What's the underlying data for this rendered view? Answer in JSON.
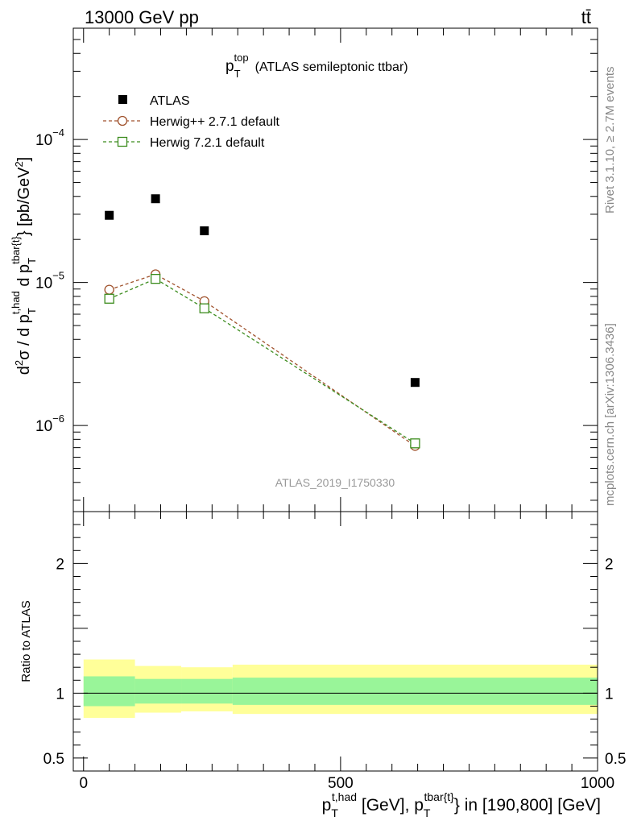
{
  "header": {
    "left": "13000 GeV pp",
    "right": "tt̄"
  },
  "side": {
    "rivet": "Rivet 3.1.10, ≥ 2.7M events",
    "mcplots": "mcplots.cern.ch [arXiv:1306.3436]"
  },
  "chart_data": [
    {
      "type": "scatter",
      "title_main": "p",
      "title_sub": "T",
      "title_sup": "top",
      "title_rest": "(ATLAS semileptonic ttbar)",
      "ylabel": "d²σ / d p_T^{t,had} d p_T^{tbar{t}} [pb/GeV²]",
      "y_scale": "log",
      "ylim": [
        2.5e-07,
        0.0006
      ],
      "xlim": [
        -20,
        1000
      ],
      "y_ticks": [
        1e-06,
        1e-05,
        0.0001
      ],
      "y_tick_labels": [
        {
          "base": "10",
          "exp": "−6"
        },
        {
          "base": "10",
          "exp": "−5"
        },
        {
          "base": "10",
          "exp": "−4"
        }
      ],
      "watermark": "ATLAS_2019_I1750330",
      "legend_position": "top-left",
      "series": [
        {
          "name": "ATLAS",
          "marker": "filled-square",
          "color": "#000000",
          "x": [
            50,
            140,
            235,
            645
          ],
          "y": [
            2.95e-05,
            3.85e-05,
            2.3e-05,
            2e-06
          ]
        },
        {
          "name": "Herwig++ 2.7.1 default",
          "marker": "open-circle",
          "color": "#a0522d",
          "x": [
            50,
            140,
            235,
            645
          ],
          "y": [
            8.9e-06,
            1.14e-05,
            7.4e-06,
            7.2e-07
          ]
        },
        {
          "name": "Herwig 7.2.1 default",
          "marker": "open-square",
          "color": "#3c8c1e",
          "x": [
            50,
            140,
            235,
            645
          ],
          "y": [
            7.7e-06,
            1.06e-05,
            6.6e-06,
            7.5e-07
          ]
        }
      ]
    },
    {
      "type": "area",
      "ylabel": "Ratio to ATLAS",
      "xlabel": "p_T^{t,had} [GeV], p_T^{tbar{t}} in [190,800] [GeV]",
      "xlim": [
        -20,
        1000
      ],
      "ylim": [
        0.4,
        2.4
      ],
      "x_ticks": [
        0,
        500,
        1000
      ],
      "x_tick_labels": [
        "0",
        "500",
        "1000"
      ],
      "y_ticks": [
        0.5,
        1,
        2
      ],
      "y_tick_labels": [
        "0.5",
        "1",
        "2"
      ],
      "bands": [
        {
          "name": "total uncertainty",
          "color": "#ffff99",
          "bins": [
            {
              "x0": 0,
              "x1": 100,
              "lo": 0.81,
              "hi": 1.26
            },
            {
              "x0": 100,
              "x1": 190,
              "lo": 0.85,
              "hi": 1.21
            },
            {
              "x0": 190,
              "x1": 290,
              "lo": 0.86,
              "hi": 1.2
            },
            {
              "x0": 290,
              "x1": 1000,
              "lo": 0.84,
              "hi": 1.22
            }
          ]
        },
        {
          "name": "statistical uncertainty",
          "color": "#99f599",
          "bins": [
            {
              "x0": 0,
              "x1": 100,
              "lo": 0.9,
              "hi": 1.13
            },
            {
              "x0": 100,
              "x1": 190,
              "lo": 0.92,
              "hi": 1.11
            },
            {
              "x0": 190,
              "x1": 290,
              "lo": 0.92,
              "hi": 1.11
            },
            {
              "x0": 290,
              "x1": 1000,
              "lo": 0.91,
              "hi": 1.12
            }
          ]
        }
      ],
      "reference_line": 1
    }
  ]
}
